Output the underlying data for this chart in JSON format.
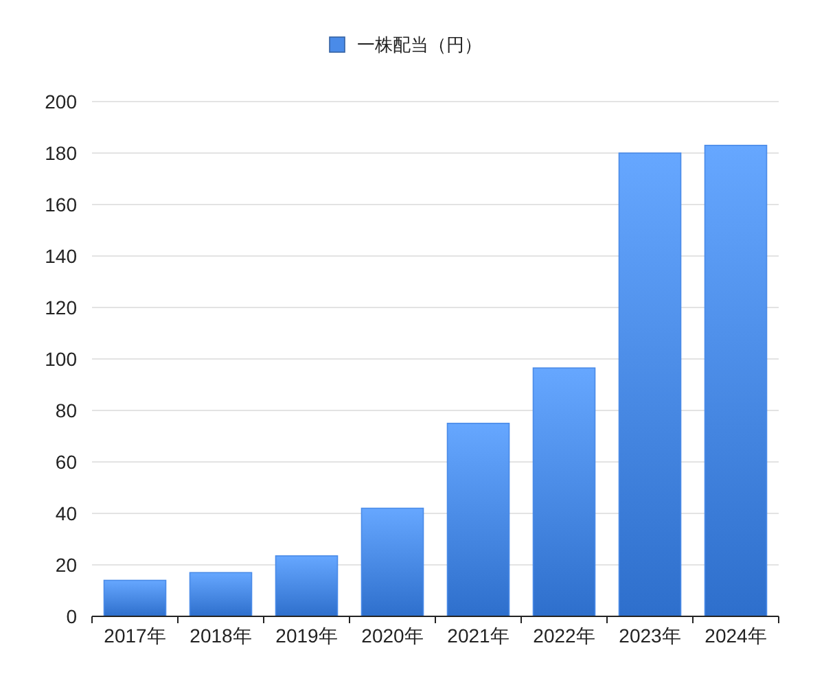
{
  "chart_data": {
    "type": "bar",
    "categories": [
      "2017年",
      "2018年",
      "2019年",
      "2020年",
      "2021年",
      "2022年",
      "2023年",
      "2024年"
    ],
    "series": [
      {
        "name": "一株配当（円）",
        "color": "#4a8be8",
        "values": [
          14,
          17,
          23.5,
          42,
          75,
          96.5,
          180,
          183
        ]
      }
    ],
    "ylim": [
      0,
      200
    ],
    "yticks": [
      0,
      20,
      40,
      60,
      80,
      100,
      120,
      140,
      160,
      180,
      200
    ],
    "grid": "y",
    "legend": "top"
  }
}
